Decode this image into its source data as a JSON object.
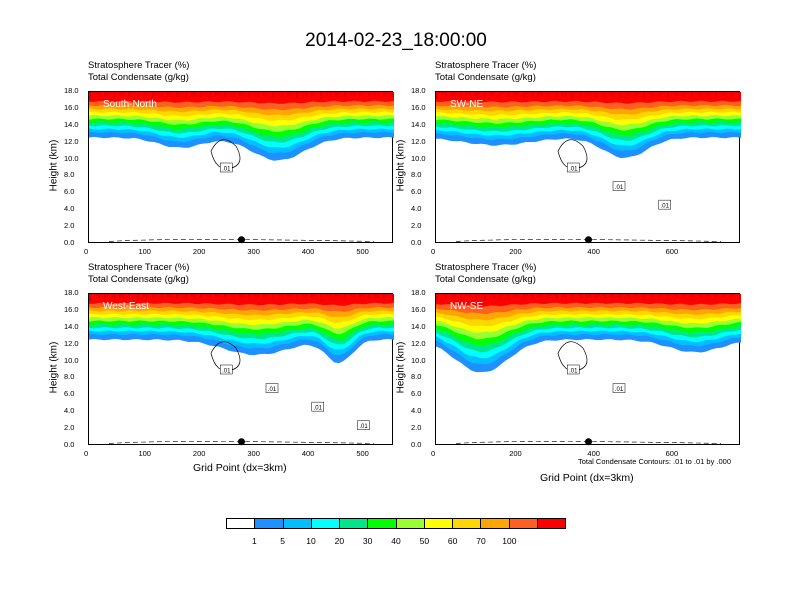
{
  "title": "2014-02-23_18:00:00",
  "note": "Total Condensate Contours: .01 to .01 by .000",
  "xlabel": "Grid Point (dx=3km)",
  "ylabel": "Height (km)",
  "panel_title_line1": "Stratosphere Tracer   (%)",
  "panel_title_line2": "Total Condensate   (g/kg)",
  "colorbar": {
    "colors": [
      "#ffffff",
      "#1e90ff",
      "#00bfff",
      "#00ffff",
      "#00e68a",
      "#00ff00",
      "#9aff32",
      "#ffff00",
      "#ffd700",
      "#ffa500",
      "#ff6020",
      "#ff0000"
    ],
    "labels": [
      "1",
      "5",
      "10",
      "20",
      "30",
      "40",
      "50",
      "60",
      "70",
      "100"
    ]
  },
  "chart_data": [
    {
      "type": "heatmap",
      "region": "South-North",
      "xlim": [
        0,
        560
      ],
      "xticks": [
        "0",
        "100",
        "200",
        "300",
        "400",
        "500"
      ],
      "ylim": [
        0,
        18
      ],
      "yticks": [
        "0.0",
        "2.0",
        "4.0",
        "6.0",
        "8.0",
        "10.0",
        "12.0",
        "14.0",
        "16.0",
        "18.0"
      ],
      "contour_labels": [
        ".01"
      ]
    },
    {
      "type": "heatmap",
      "region": "SW-NE",
      "xlim": [
        0,
        780
      ],
      "xticks": [
        "0",
        "200",
        "400",
        "600"
      ],
      "ylim": [
        0,
        18
      ],
      "yticks": [
        "0.0",
        "2.0",
        "4.0",
        "6.0",
        "8.0",
        "10.0",
        "12.0",
        "14.0",
        "16.0",
        "18.0"
      ],
      "contour_labels": [
        ".01",
        ".01",
        ".01"
      ]
    },
    {
      "type": "heatmap",
      "region": "West-East",
      "xlim": [
        0,
        560
      ],
      "xticks": [
        "0",
        "100",
        "200",
        "300",
        "400",
        "500"
      ],
      "ylim": [
        0,
        18
      ],
      "yticks": [
        "0.0",
        "2.0",
        "4.0",
        "6.0",
        "8.0",
        "10.0",
        "12.0",
        "14.0",
        "16.0",
        "18.0"
      ],
      "contour_labels": [
        ".01",
        ".01",
        ".01",
        ".01"
      ]
    },
    {
      "type": "heatmap",
      "region": "NW-SE",
      "xlim": [
        0,
        780
      ],
      "xticks": [
        "0",
        "200",
        "400",
        "600"
      ],
      "ylim": [
        0,
        18
      ],
      "yticks": [
        "0.0",
        "2.0",
        "4.0",
        "6.0",
        "8.0",
        "10.0",
        "12.0",
        "14.0",
        "16.0",
        "18.0"
      ],
      "contour_labels": [
        ".01",
        ".01"
      ]
    }
  ]
}
